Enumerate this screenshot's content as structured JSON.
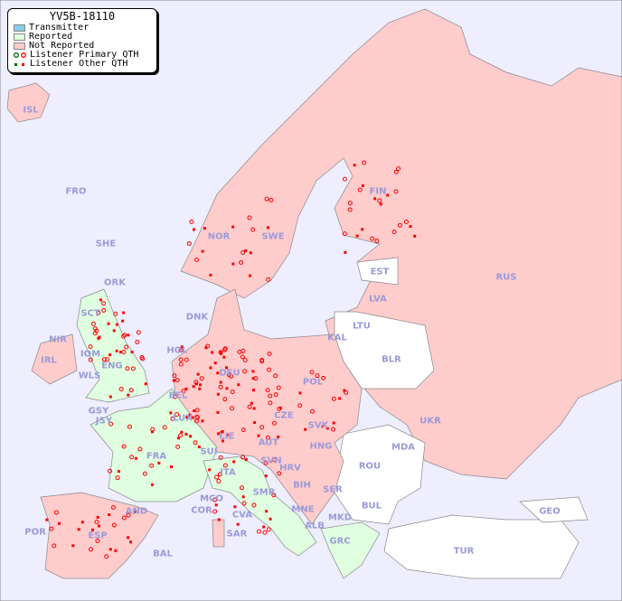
{
  "legend": {
    "title": "YV5B-18110",
    "items": [
      {
        "label": "Transmitter",
        "color": "#87ceeb"
      },
      {
        "label": "Reported",
        "color": "#e0ffe0"
      },
      {
        "label": "Not Reported",
        "color": "#ffcccc"
      },
      {
        "label": "Listener Primary QTH",
        "marker": "circle",
        "colors": [
          "#006600",
          "#ff0000"
        ]
      },
      {
        "label": "Listener Other QTH",
        "marker": "square",
        "colors": [
          "#006600",
          "#ff0000"
        ]
      }
    ]
  },
  "colors": {
    "sea": "#eeeeff",
    "not_reported": "#ffcccc",
    "reported": "#e0ffe0",
    "no_data": "#ffffff",
    "border": "#888888",
    "label": "#9a9ad8"
  },
  "countries": [
    "ISL",
    "FRO",
    "SHE",
    "ORK",
    "NOR",
    "SWE",
    "FIN",
    "EST",
    "LVA",
    "LTU",
    "RUS",
    "DNK",
    "HOL",
    "BEL",
    "LUX",
    "DEU",
    "POL",
    "KAL",
    "BLR",
    "UKR",
    "MDA",
    "ROU",
    "BUL",
    "GEO",
    "TUR",
    "CZE",
    "SVK",
    "HNG",
    "AUT",
    "SUI",
    "LIE",
    "SVN",
    "HRV",
    "BIH",
    "SER",
    "MNE",
    "ALB",
    "MKD",
    "GRC",
    "ITA",
    "SMR",
    "MCO",
    "COR",
    "CVA",
    "SAR",
    "FRA",
    "AND",
    "ESP",
    "POR",
    "BAL",
    "IRL",
    "NIR",
    "SCT",
    "WLS",
    "IOM",
    "ENG",
    "GSY",
    "JSY"
  ]
}
